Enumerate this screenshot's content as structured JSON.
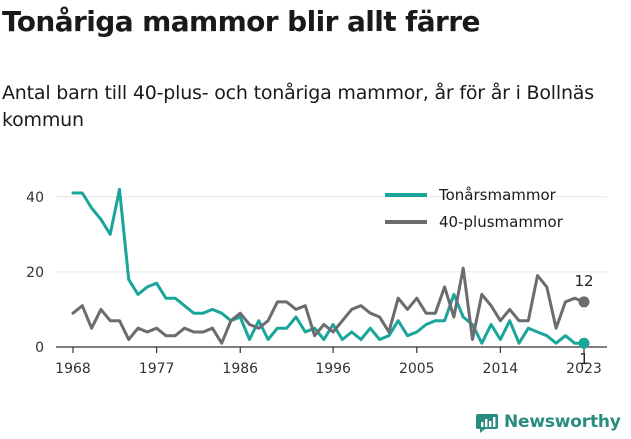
{
  "title": "Tonåriga mammor blir allt färre",
  "subtitle": "Antal barn till 40-plus- och tonåriga mammor, år för år i Bollnäs kommun",
  "brand": {
    "name": "Newsworthy",
    "icon": "newsworthy-logo-icon",
    "color": "#2a8c7f"
  },
  "chart_data": {
    "type": "line",
    "x": [
      1968,
      1969,
      1970,
      1971,
      1972,
      1973,
      1974,
      1975,
      1976,
      1977,
      1978,
      1979,
      1980,
      1981,
      1982,
      1983,
      1984,
      1985,
      1986,
      1987,
      1988,
      1989,
      1990,
      1991,
      1992,
      1993,
      1994,
      1995,
      1996,
      1997,
      1998,
      1999,
      2000,
      2001,
      2002,
      2003,
      2004,
      2005,
      2006,
      2007,
      2008,
      2009,
      2010,
      2011,
      2012,
      2013,
      2014,
      2015,
      2016,
      2017,
      2018,
      2019,
      2020,
      2021,
      2022,
      2023
    ],
    "series": [
      {
        "name": "Tonårsmammor",
        "color": "#1aa59a",
        "values": [
          41,
          41,
          37,
          34,
          30,
          42,
          18,
          14,
          16,
          17,
          13,
          13,
          11,
          9,
          9,
          10,
          9,
          7,
          8,
          2,
          7,
          2,
          5,
          5,
          8,
          4,
          5,
          2,
          6,
          2,
          4,
          2,
          5,
          2,
          3,
          7,
          3,
          4,
          6,
          7,
          7,
          14,
          8,
          6,
          1,
          6,
          2,
          7,
          1,
          5,
          4,
          3,
          1,
          3,
          1,
          1
        ]
      },
      {
        "name": "40-plusmammor",
        "color": "#6b6b70",
        "values": [
          9,
          11,
          5,
          10,
          7,
          7,
          2,
          5,
          4,
          5,
          3,
          3,
          5,
          4,
          4,
          5,
          1,
          7,
          9,
          6,
          5,
          7,
          12,
          12,
          10,
          11,
          3,
          6,
          4,
          7,
          10,
          11,
          9,
          8,
          4,
          13,
          10,
          13,
          9,
          9,
          16,
          8,
          21,
          2,
          14,
          11,
          7,
          10,
          7,
          7,
          19,
          16,
          5,
          12,
          13,
          12
        ]
      }
    ],
    "end_labels": {
      "Tonårsmammor": "1",
      "40-plusmammor": "12"
    },
    "x_ticks": [
      1968,
      1977,
      1986,
      1996,
      2005,
      2014,
      2023
    ],
    "y_ticks": [
      0,
      20,
      40
    ],
    "xlim": [
      1968,
      2023
    ],
    "ylim": [
      0,
      45
    ],
    "grid": "horizontal",
    "legend_position": "top-right",
    "xlabel": "",
    "ylabel": ""
  }
}
